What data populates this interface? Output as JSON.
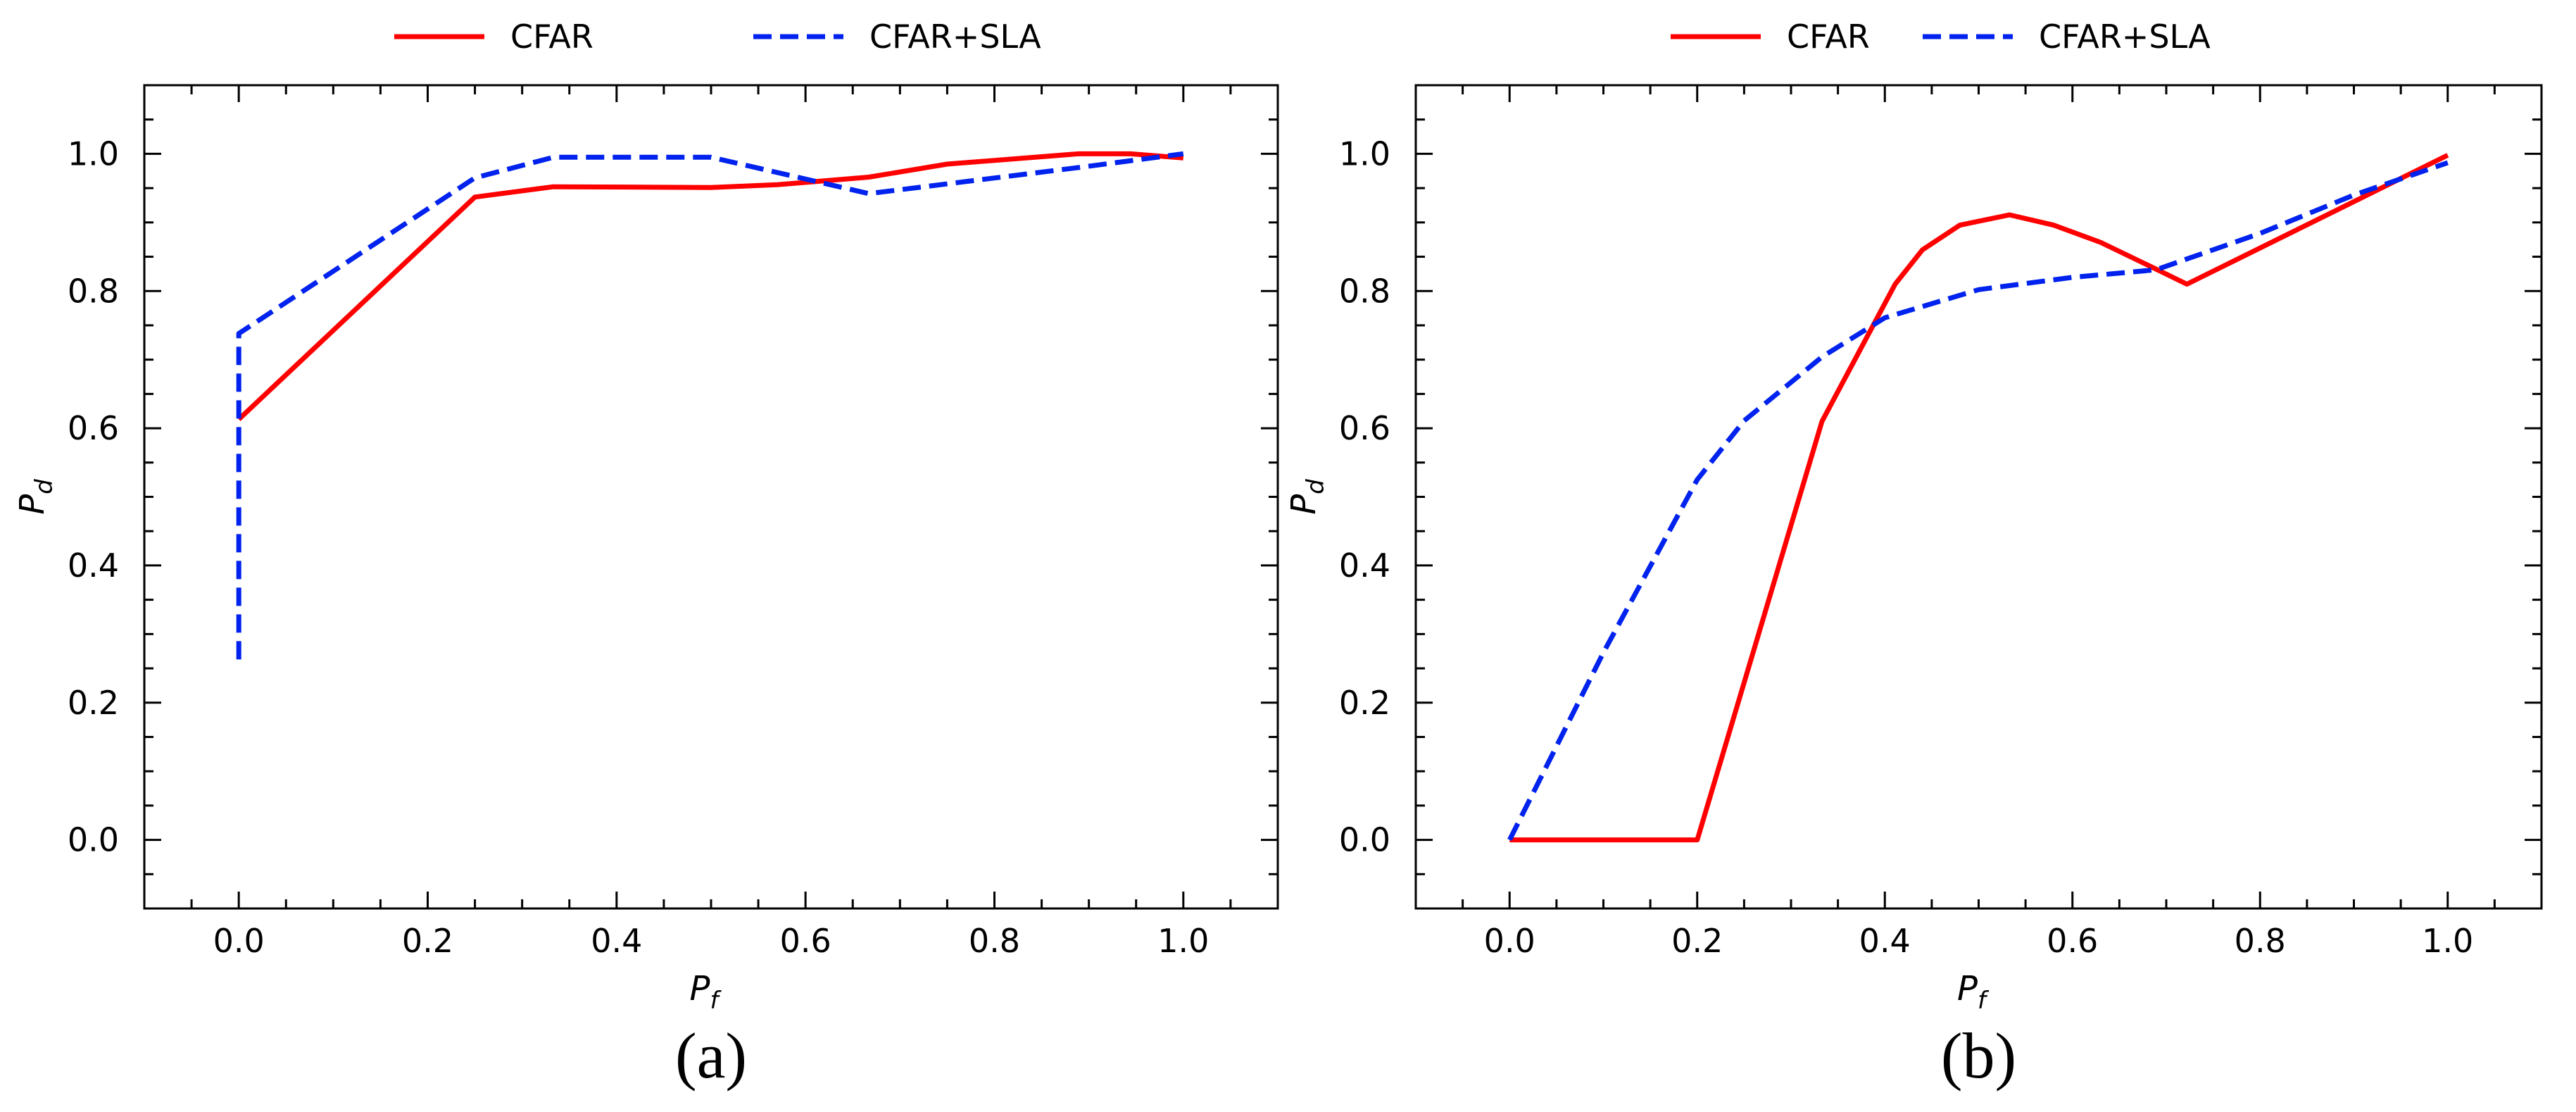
{
  "chart_data": [
    {
      "type": "line",
      "panel_label": "(a)",
      "xlabel": "P",
      "xlabel_sub": "f",
      "ylabel": "P",
      "ylabel_sub": "d",
      "xlim": [
        -0.1,
        1.1
      ],
      "ylim": [
        -0.1,
        1.1
      ],
      "xticks": [
        "0.0",
        "0.2",
        "0.4",
        "0.6",
        "0.8",
        "1.0"
      ],
      "yticks": [
        "0.0",
        "0.2",
        "0.4",
        "0.6",
        "0.8",
        "1.0"
      ],
      "grid": false,
      "legend_placement": "top (above axes)",
      "series": [
        {
          "name": "CFAR",
          "color": "#ff0000",
          "style": "solid",
          "x": [
            0.0,
            0.25,
            0.333,
            0.5,
            0.57,
            0.667,
            0.75,
            0.889,
            0.944,
            1.0
          ],
          "y": [
            0.613,
            0.937,
            0.952,
            0.951,
            0.955,
            0.966,
            0.985,
            1.0,
            1.0,
            0.994
          ]
        },
        {
          "name": "CFAR+SLA",
          "color": "#0022ee",
          "style": "dashed",
          "x": [
            0.0,
            0.0,
            0.25,
            0.333,
            0.5,
            0.667,
            0.889,
            1.0
          ],
          "y": [
            0.263,
            0.738,
            0.965,
            0.995,
            0.995,
            0.942,
            0.98,
            1.0
          ]
        }
      ]
    },
    {
      "type": "line",
      "panel_label": "(b)",
      "xlabel": "P",
      "xlabel_sub": "f",
      "ylabel": "P",
      "ylabel_sub": "d",
      "xlim": [
        -0.1,
        1.1
      ],
      "ylim": [
        -0.1,
        1.1
      ],
      "xticks": [
        "0.0",
        "0.2",
        "0.4",
        "0.6",
        "0.8",
        "1.0"
      ],
      "yticks": [
        "0.0",
        "0.2",
        "0.4",
        "0.6",
        "0.8",
        "1.0"
      ],
      "grid": false,
      "legend_placement": "top (above axes)",
      "series": [
        {
          "name": "CFAR",
          "color": "#ff0000",
          "style": "solid",
          "x": [
            0.0,
            0.2,
            0.333,
            0.411,
            0.44,
            0.48,
            0.533,
            0.58,
            0.63,
            0.68,
            0.722,
            1.0
          ],
          "y": [
            0.0,
            0.0,
            0.61,
            0.81,
            0.86,
            0.896,
            0.911,
            0.896,
            0.871,
            0.838,
            0.81,
            0.998
          ]
        },
        {
          "name": "CFAR+SLA",
          "color": "#0022ee",
          "style": "dashed",
          "x": [
            0.0,
            0.1,
            0.2,
            0.25,
            0.333,
            0.4,
            0.5,
            0.6,
            0.689,
            0.8,
            0.9,
            1.0
          ],
          "y": [
            0.0,
            0.273,
            0.525,
            0.611,
            0.704,
            0.761,
            0.802,
            0.82,
            0.831,
            0.884,
            0.94,
            0.987
          ]
        }
      ]
    }
  ]
}
